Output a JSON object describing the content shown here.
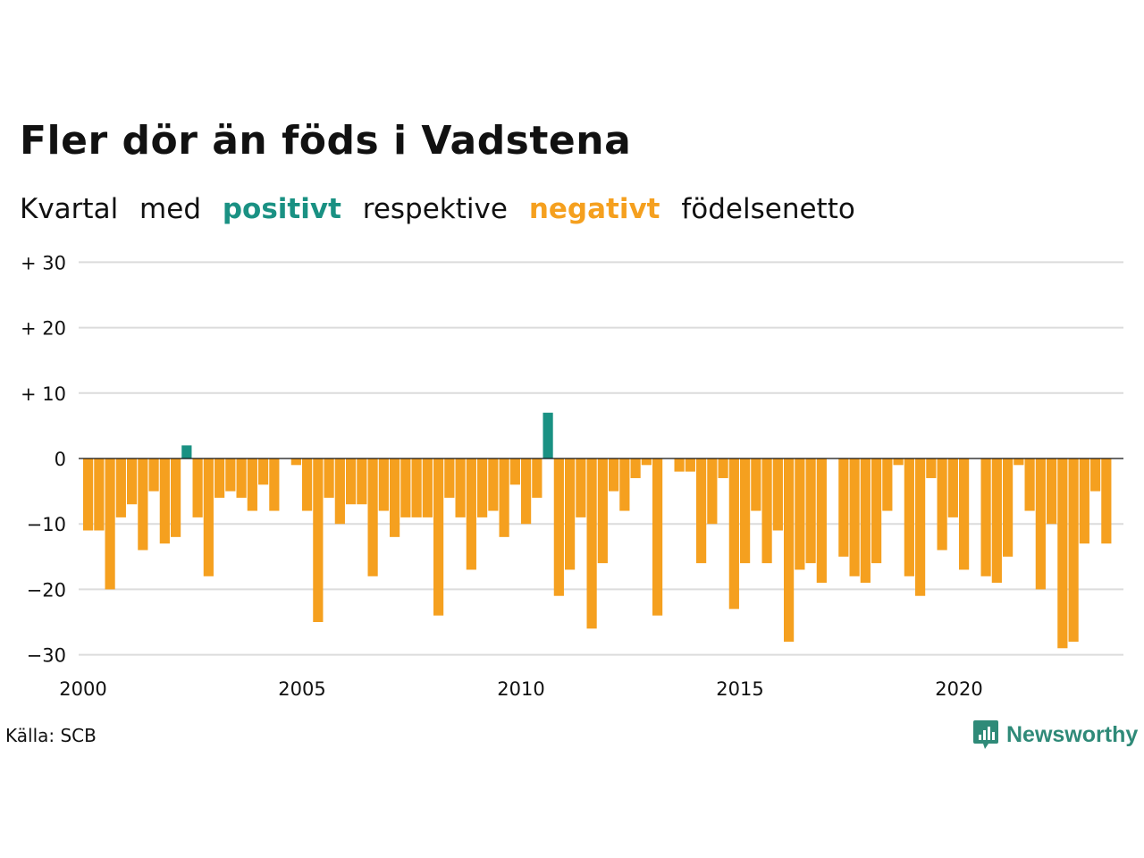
{
  "title": "Fler dör än föds i Vadstena",
  "subtitle": {
    "w1": "Kvartal",
    "w2": "med",
    "positive": "positivt",
    "w3": "respektive",
    "negative": "negativt",
    "w4": "födelsenetto"
  },
  "source": "Källa: SCB",
  "brand": "Newsworthy",
  "colors": {
    "positive": "#1a9183",
    "negative": "#f5a01f",
    "grid": "#dcdcdc"
  },
  "chart_data": {
    "type": "bar",
    "x_start": "2000 Q1",
    "frequency": "quarterly",
    "ylim": [
      -30,
      30
    ],
    "yticks": [
      {
        "value": 30,
        "label": "+ 30"
      },
      {
        "value": 20,
        "label": "+ 20"
      },
      {
        "value": 10,
        "label": "+ 10"
      },
      {
        "value": 0,
        "label": "0"
      },
      {
        "value": -10,
        "label": "−10"
      },
      {
        "value": -20,
        "label": "−20"
      },
      {
        "value": -30,
        "label": "−30"
      }
    ],
    "xticks": [
      "2000",
      "2005",
      "2010",
      "2015",
      "2020"
    ],
    "values": [
      -11,
      -11,
      -20,
      -9,
      -7,
      -14,
      -5,
      -13,
      -12,
      2,
      -9,
      -18,
      -6,
      -5,
      -6,
      -8,
      -4,
      -8,
      0,
      -1,
      -8,
      -25,
      -6,
      -10,
      -7,
      -7,
      -18,
      -8,
      -12,
      -9,
      -9,
      -9,
      -24,
      -6,
      -9,
      -17,
      -9,
      -8,
      -12,
      -4,
      -10,
      -6,
      7,
      -21,
      -17,
      -9,
      -26,
      -16,
      -5,
      -8,
      -3,
      -1,
      -24,
      0,
      -2,
      -2,
      -16,
      -10,
      -3,
      -23,
      -16,
      -8,
      -16,
      -11,
      -28,
      -17,
      -16,
      -19,
      0,
      -15,
      -18,
      -19,
      -16,
      -8,
      -1,
      -18,
      -21,
      -3,
      -14,
      -9,
      -17,
      0,
      -18,
      -19,
      -15,
      -1,
      -8,
      -20,
      -10,
      -29,
      -28,
      -13,
      -5,
      -13
    ]
  }
}
